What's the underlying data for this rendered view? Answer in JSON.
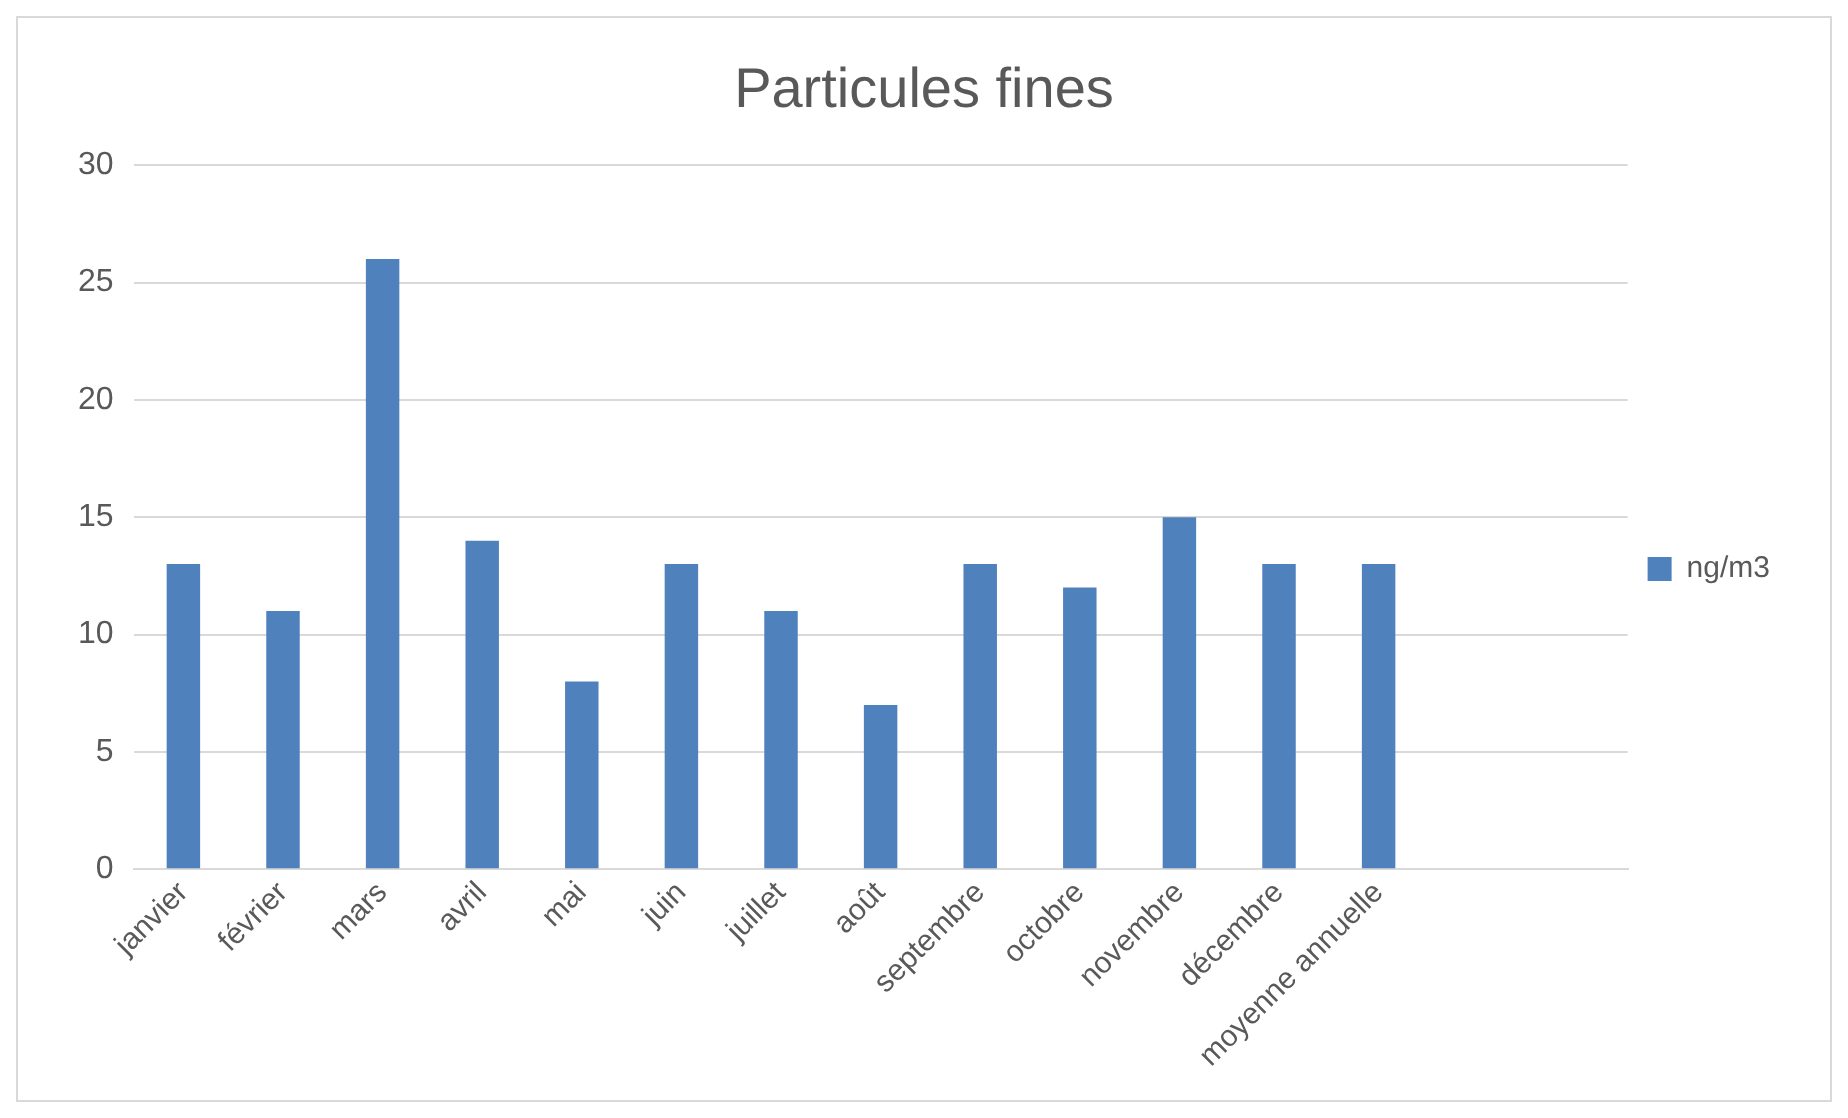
{
  "chart_data": {
    "type": "bar",
    "title": "Particules fines",
    "categories": [
      "janvier",
      "février",
      "mars",
      "avril",
      "mai",
      "juin",
      "juillet",
      "août",
      "septembre",
      "octobre",
      "novembre",
      "décembre",
      "moyenne annuelle",
      null,
      null
    ],
    "series": [
      {
        "name": "ng/m3",
        "color": "#4f81bd",
        "values": [
          13,
          11,
          26,
          14,
          8,
          13,
          11,
          7,
          13,
          12,
          15,
          13,
          13,
          null,
          null
        ]
      }
    ],
    "ylim": [
      0,
      30
    ],
    "yticks": [
      0,
      5,
      10,
      15,
      20,
      25,
      30
    ],
    "grid": "y",
    "legend": "right"
  }
}
